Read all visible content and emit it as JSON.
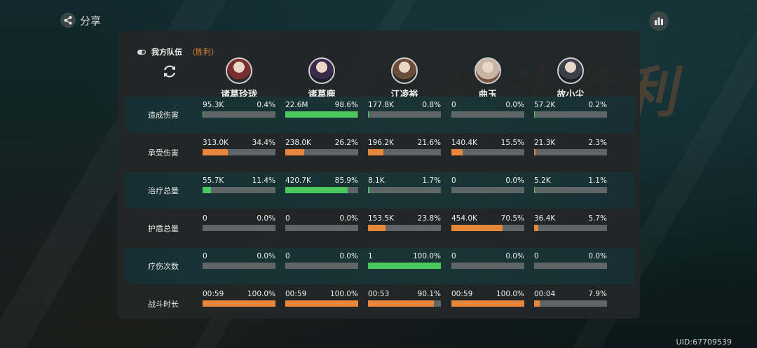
{
  "header": {
    "share_label": "分享",
    "share_icon": "share-icon",
    "stats_icon": "bar-chart-icon",
    "bg_text": "战斗胜利"
  },
  "team": {
    "label": "我方队伍",
    "result": "（胜利）"
  },
  "refresh_icon": "refresh-icon",
  "players": [
    {
      "name": "诸葛玲珑"
    },
    {
      "name": "诸葛鹿"
    },
    {
      "name": "江凌裕"
    },
    {
      "name": "曲玉"
    },
    {
      "name": "故小尘"
    }
  ],
  "colors": {
    "orange": "#e8873a",
    "green": "#4cc95e",
    "track": "#5f6666"
  },
  "rows": [
    {
      "label": "造成伤害",
      "style": "dark",
      "color": "green",
      "cells": [
        {
          "value": "95.3K",
          "percent": "0.4%",
          "fraction": 0.004
        },
        {
          "value": "22.6M",
          "percent": "98.6%",
          "fraction": 0.986
        },
        {
          "value": "177.8K",
          "percent": "0.8%",
          "fraction": 0.008
        },
        {
          "value": "0",
          "percent": "0.0%",
          "fraction": 0
        },
        {
          "value": "57.2K",
          "percent": "0.2%",
          "fraction": 0.002
        }
      ]
    },
    {
      "label": "承受伤害",
      "style": "light",
      "color": "orange",
      "cells": [
        {
          "value": "313.0K",
          "percent": "34.4%",
          "fraction": 0.344
        },
        {
          "value": "238.0K",
          "percent": "26.2%",
          "fraction": 0.262
        },
        {
          "value": "196.2K",
          "percent": "21.6%",
          "fraction": 0.216
        },
        {
          "value": "140.4K",
          "percent": "15.5%",
          "fraction": 0.155
        },
        {
          "value": "21.3K",
          "percent": "2.3%",
          "fraction": 0.023
        }
      ]
    },
    {
      "label": "治疗总量",
      "style": "dark",
      "color": "green",
      "cells": [
        {
          "value": "55.7K",
          "percent": "11.4%",
          "fraction": 0.114
        },
        {
          "value": "420.7K",
          "percent": "85.9%",
          "fraction": 0.859
        },
        {
          "value": "8.1K",
          "percent": "1.7%",
          "fraction": 0.017
        },
        {
          "value": "0",
          "percent": "0.0%",
          "fraction": 0
        },
        {
          "value": "5.2K",
          "percent": "1.1%",
          "fraction": 0.011
        }
      ]
    },
    {
      "label": "护盾总量",
      "style": "light",
      "color": "orange",
      "cells": [
        {
          "value": "0",
          "percent": "0.0%",
          "fraction": 0
        },
        {
          "value": "0",
          "percent": "0.0%",
          "fraction": 0
        },
        {
          "value": "153.5K",
          "percent": "23.8%",
          "fraction": 0.238
        },
        {
          "value": "454.0K",
          "percent": "70.5%",
          "fraction": 0.705
        },
        {
          "value": "36.4K",
          "percent": "5.7%",
          "fraction": 0.057
        }
      ]
    },
    {
      "label": "疗伤次数",
      "style": "dark",
      "color": "green",
      "cells": [
        {
          "value": "0",
          "percent": "0.0%",
          "fraction": 0
        },
        {
          "value": "0",
          "percent": "0.0%",
          "fraction": 0
        },
        {
          "value": "1",
          "percent": "100.0%",
          "fraction": 1.0
        },
        {
          "value": "0",
          "percent": "0.0%",
          "fraction": 0
        },
        {
          "value": "0",
          "percent": "0.0%",
          "fraction": 0
        }
      ]
    },
    {
      "label": "战斗时长",
      "style": "light",
      "color": "orange",
      "cells": [
        {
          "value": "00:59",
          "percent": "100.0%",
          "fraction": 1.0
        },
        {
          "value": "00:59",
          "percent": "100.0%",
          "fraction": 1.0
        },
        {
          "value": "00:53",
          "percent": "90.1%",
          "fraction": 0.901
        },
        {
          "value": "00:59",
          "percent": "100.0%",
          "fraction": 1.0
        },
        {
          "value": "00:04",
          "percent": "7.9%",
          "fraction": 0.079
        }
      ]
    }
  ],
  "uid": "UID:67709539"
}
